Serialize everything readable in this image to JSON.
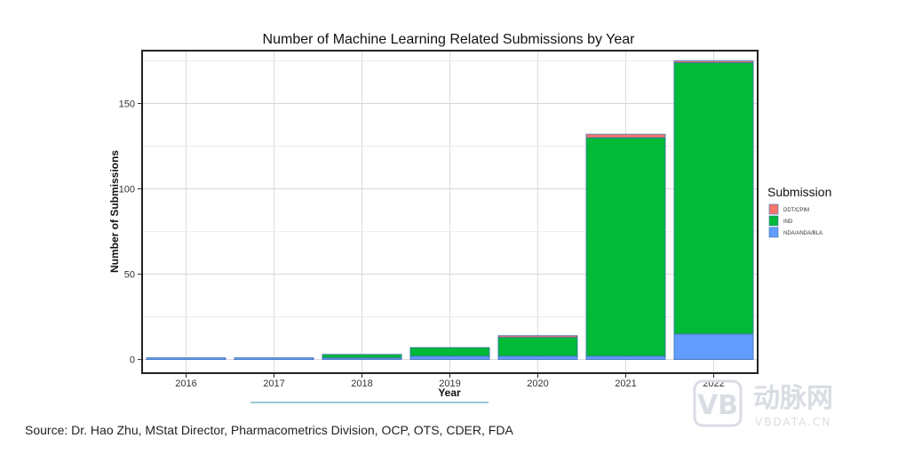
{
  "chart_data": {
    "type": "bar",
    "stacked": true,
    "title": "Number of Machine Learning Related Submissions by Year",
    "xlabel": "Year",
    "ylabel": "Number of Submissions",
    "categories": [
      "2016",
      "2017",
      "2018",
      "2019",
      "2020",
      "2021",
      "2022"
    ],
    "ylim": [
      -8,
      181
    ],
    "yticks": [
      0,
      50,
      100,
      150
    ],
    "grid": true,
    "legend_title": "Submission",
    "legend_position": "right",
    "series": [
      {
        "name": "NDA/ANDA/BLA",
        "color": "#619CFF",
        "values": [
          1,
          1,
          1,
          2,
          2,
          2,
          15
        ]
      },
      {
        "name": "IND",
        "color": "#00BA38",
        "values": [
          0,
          0,
          2,
          5,
          11,
          128,
          159
        ]
      },
      {
        "name": "DDT/CPIM",
        "color": "#F8766D",
        "values": [
          0,
          0,
          0,
          0,
          1,
          2,
          1
        ]
      }
    ]
  },
  "footer": {
    "source": "Source: Dr. Hao Zhu, MStat Director, Pharmacometrics Division, OCP, OTS, CDER, FDA"
  },
  "watermark": {
    "logo_mark": "VB",
    "name": "动脉网",
    "url": "VBDATA.CN"
  }
}
